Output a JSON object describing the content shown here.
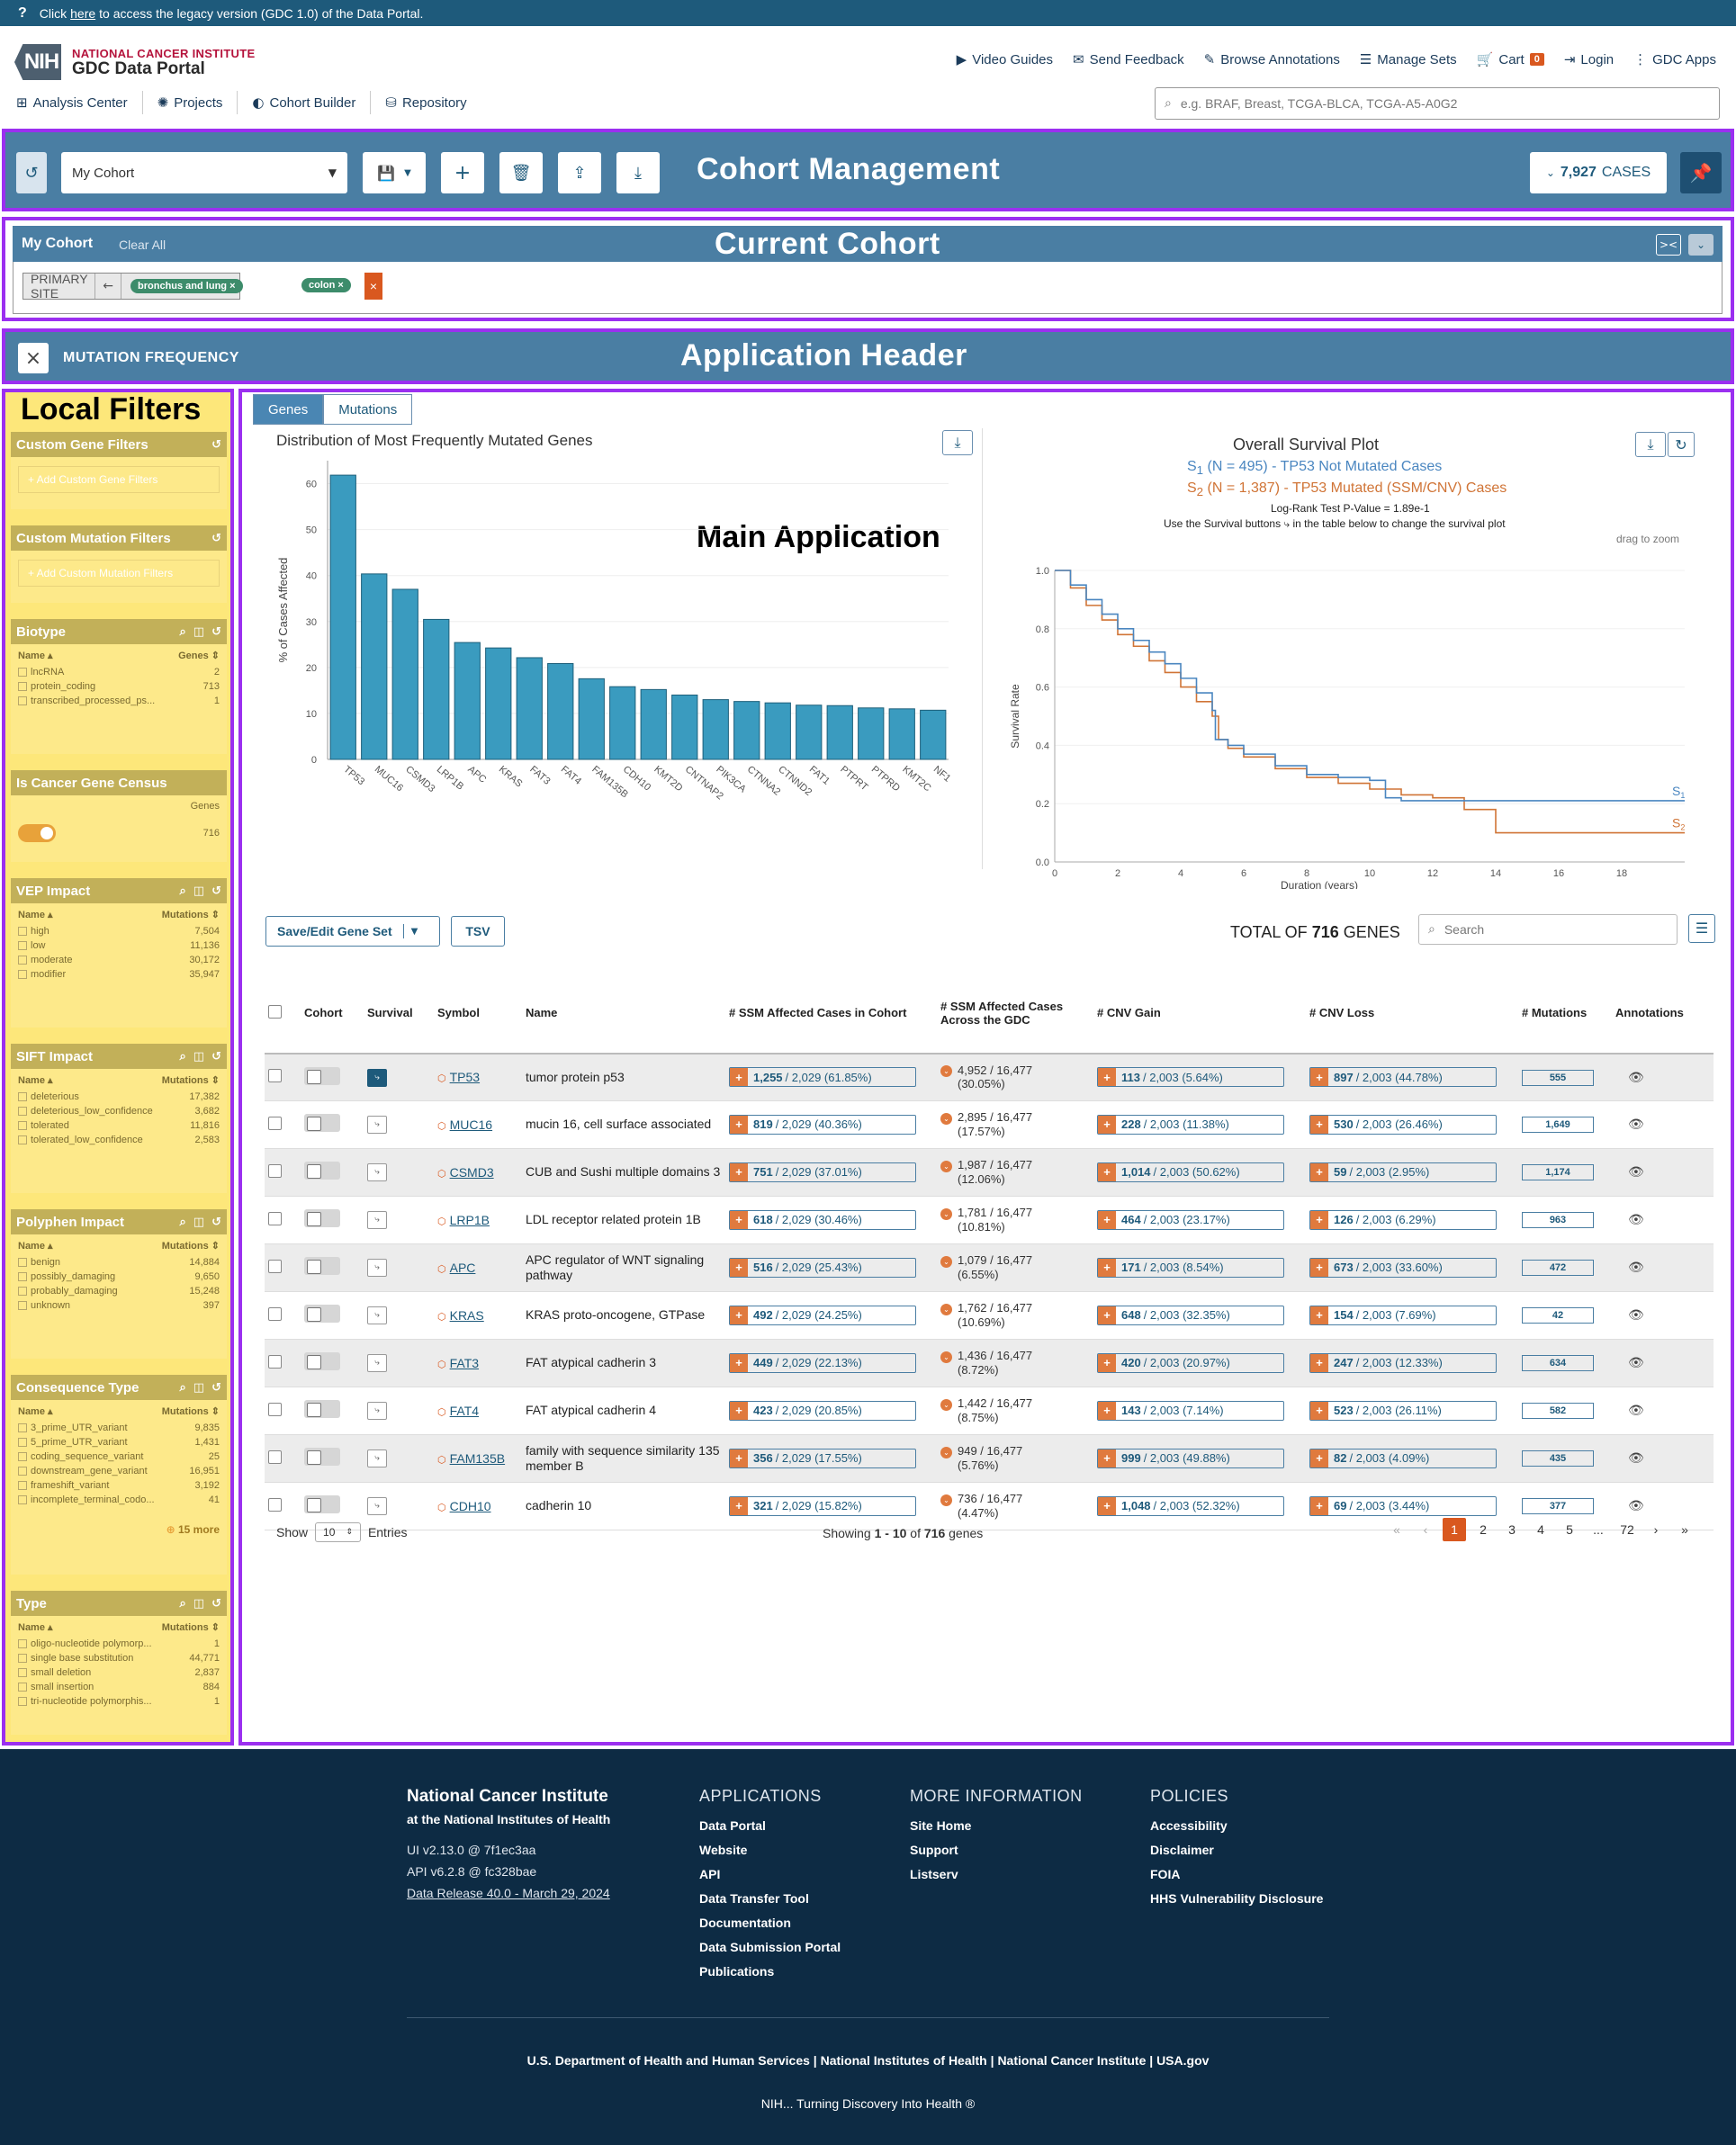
{
  "topbar": {
    "pre": "Click",
    "link": "here",
    "post": "to access the legacy version (GDC 1.0) of the Data Portal."
  },
  "logo": {
    "nih": "NIH",
    "line1": "NATIONAL CANCER INSTITUTE",
    "line2": "GDC Data Portal"
  },
  "topnav": [
    {
      "icon": "▶",
      "label": "Video Guides"
    },
    {
      "icon": "✉",
      "label": "Send Feedback"
    },
    {
      "icon": "✎",
      "label": "Browse Annotations"
    },
    {
      "icon": "☰",
      "label": "Manage Sets"
    },
    {
      "icon": "🛒",
      "label": "Cart",
      "badge": "0"
    },
    {
      "icon": "⇥",
      "label": "Login"
    },
    {
      "icon": "⋮",
      "label": "GDC Apps"
    }
  ],
  "secnav": [
    {
      "icon": "⊞",
      "label": "Analysis Center"
    },
    {
      "icon": "✺",
      "label": "Projects"
    },
    {
      "icon": "◐",
      "label": "Cohort Builder"
    },
    {
      "icon": "⛁",
      "label": "Repository"
    }
  ],
  "search": {
    "placeholder": "e.g. BRAF, Breast, TCGA-BLCA, TCGA-A5-A0G2"
  },
  "annotations": {
    "cohort_mgmt": "Cohort Management",
    "current_cohort": "Current Cohort",
    "app_header": "Application Header",
    "local_filters": "Local Filters",
    "main_app": "Main Application"
  },
  "cohort_mgmt": {
    "cohort_name": "My Cohort",
    "cases_count": "7,927",
    "cases_label": "CASES"
  },
  "current_cohort": {
    "title": "My Cohort",
    "clear": "Clear All",
    "filter_field": "PRIMARY SITE",
    "chip1": "bronchus and lung",
    "chip2": "colon"
  },
  "app_header": {
    "title": "MUTATION FREQUENCY"
  },
  "local_filters": {
    "custom_gene": {
      "title": "Custom Gene Filters",
      "btn": "+ Add Custom Gene Filters"
    },
    "custom_mut": {
      "title": "Custom Mutation Filters",
      "btn": "+ Add Custom Mutation Filters"
    },
    "biotype": {
      "title": "Biotype",
      "col1": "Name",
      "col2": "Genes",
      "rows": [
        [
          "lncRNA",
          "2"
        ],
        [
          "protein_coding",
          "713"
        ],
        [
          "transcribed_processed_ps...",
          "1"
        ]
      ]
    },
    "cgc": {
      "title": "Is Cancer Gene Census",
      "col2": "Genes",
      "value": "716"
    },
    "vep": {
      "title": "VEP Impact",
      "col1": "Name",
      "col2": "Mutations",
      "rows": [
        [
          "high",
          "7,504"
        ],
        [
          "low",
          "11,136"
        ],
        [
          "moderate",
          "30,172"
        ],
        [
          "modifier",
          "35,947"
        ]
      ]
    },
    "sift": {
      "title": "SIFT Impact",
      "col1": "Name",
      "col2": "Mutations",
      "rows": [
        [
          "deleterious",
          "17,382"
        ],
        [
          "deleterious_low_confidence",
          "3,682"
        ],
        [
          "tolerated",
          "11,816"
        ],
        [
          "tolerated_low_confidence",
          "2,583"
        ]
      ]
    },
    "polyphen": {
      "title": "Polyphen Impact",
      "col1": "Name",
      "col2": "Mutations",
      "rows": [
        [
          "benign",
          "14,884"
        ],
        [
          "possibly_damaging",
          "9,650"
        ],
        [
          "probably_damaging",
          "15,248"
        ],
        [
          "unknown",
          "397"
        ]
      ]
    },
    "consequence": {
      "title": "Consequence Type",
      "col1": "Name",
      "col2": "Mutations",
      "rows": [
        [
          "3_prime_UTR_variant",
          "9,835"
        ],
        [
          "5_prime_UTR_variant",
          "1,431"
        ],
        [
          "coding_sequence_variant",
          "25"
        ],
        [
          "downstream_gene_variant",
          "16,951"
        ],
        [
          "frameshift_variant",
          "3,192"
        ],
        [
          "incomplete_terminal_codo...",
          "41"
        ]
      ],
      "more": "15 more"
    },
    "type": {
      "title": "Type",
      "col1": "Name",
      "col2": "Mutations",
      "rows": [
        [
          "oligo-nucleotide polymorp...",
          "1"
        ],
        [
          "single base substitution",
          "44,771"
        ],
        [
          "small deletion",
          "2,837"
        ],
        [
          "small insertion",
          "884"
        ],
        [
          "tri-nucleotide polymorphis...",
          "1"
        ]
      ]
    }
  },
  "main": {
    "tabs": [
      "Genes",
      "Mutations"
    ],
    "save_btn": "Save/Edit Gene Set",
    "tsv_btn": "TSV",
    "total_pre": "TOTAL OF",
    "total_num": "716",
    "total_post": "GENES",
    "search_placeholder": "Search",
    "show": "Show",
    "entries": "Entries",
    "page_size": "10",
    "showing_pre": "Showing",
    "showing_range": "1 - 10",
    "showing_of": "of",
    "showing_total": "716",
    "showing_post": "genes",
    "pages": [
      "1",
      "2",
      "3",
      "4",
      "5",
      "...",
      "72"
    ]
  },
  "bar_chart": {
    "title": "Distribution of Most Frequently Mutated Genes",
    "ylabel": "% of Cases Affected",
    "ylim": [
      0,
      65
    ],
    "yticks": [
      0,
      10,
      20,
      30,
      40,
      50,
      60
    ],
    "categories": [
      "TP53",
      "MUC16",
      "CSMD3",
      "LRP1B",
      "APC",
      "KRAS",
      "FAT3",
      "FAT4",
      "FAM135B",
      "CDH10",
      "KMT2D",
      "CNTNAP2",
      "PIK3CA",
      "CTNNA2",
      "CTNND2",
      "FAT1",
      "PTPRT",
      "PTPRD",
      "KMT2C",
      "NF1"
    ],
    "values": [
      61.85,
      40.36,
      37.01,
      30.46,
      25.43,
      24.25,
      22.13,
      20.85,
      17.55,
      15.82,
      15.2,
      14.0,
      13.0,
      12.6,
      12.3,
      11.8,
      11.7,
      11.2,
      11.0,
      10.7
    ],
    "color": "#3a9bbf"
  },
  "survival": {
    "title": "Overall Survival Plot",
    "s1_label_pre": "S",
    "s1_sub": "1",
    "s1_label": "(N = 495) - TP53 Not Mutated Cases",
    "s2_label_pre": "S",
    "s2_sub": "2",
    "s2_label": "(N = 1,387) - TP53 Mutated (SSM/CNV) Cases",
    "logrank": "Log-Rank Test P-Value = 1.89e-1",
    "hint": "Use the Survival buttons ⤷ in the table below to change the survival plot",
    "drag": "drag to zoom",
    "xlabel": "Duration (years)",
    "ylabel": "Survival Rate",
    "xticks": [
      0,
      2,
      4,
      6,
      8,
      10,
      12,
      14,
      16,
      18
    ],
    "yticks": [
      0.0,
      0.2,
      0.4,
      0.6,
      0.8,
      1.0
    ],
    "s1_color": "#4a86c0",
    "s2_color": "#d07436",
    "s1": [
      [
        0,
        1.0
      ],
      [
        0.5,
        0.95
      ],
      [
        1,
        0.9
      ],
      [
        1.5,
        0.85
      ],
      [
        2,
        0.8
      ],
      [
        2.5,
        0.76
      ],
      [
        3,
        0.72
      ],
      [
        3.5,
        0.68
      ],
      [
        4,
        0.63
      ],
      [
        4.5,
        0.58
      ],
      [
        5,
        0.52
      ],
      [
        5.1,
        0.42
      ],
      [
        5.5,
        0.4
      ],
      [
        6,
        0.37
      ],
      [
        7,
        0.33
      ],
      [
        8,
        0.3
      ],
      [
        9,
        0.29
      ],
      [
        10,
        0.28
      ],
      [
        10.5,
        0.22
      ],
      [
        11,
        0.21
      ],
      [
        13,
        0.21
      ],
      [
        14,
        0.21
      ],
      [
        20,
        0.21
      ]
    ],
    "s2": [
      [
        0,
        1.0
      ],
      [
        0.5,
        0.94
      ],
      [
        1,
        0.88
      ],
      [
        1.5,
        0.83
      ],
      [
        2,
        0.78
      ],
      [
        2.5,
        0.74
      ],
      [
        3,
        0.69
      ],
      [
        3.5,
        0.65
      ],
      [
        4,
        0.6
      ],
      [
        4.5,
        0.55
      ],
      [
        5,
        0.5
      ],
      [
        5.2,
        0.42
      ],
      [
        5.5,
        0.39
      ],
      [
        6,
        0.36
      ],
      [
        7,
        0.32
      ],
      [
        8,
        0.29
      ],
      [
        9,
        0.27
      ],
      [
        10,
        0.25
      ],
      [
        11,
        0.23
      ],
      [
        12,
        0.22
      ],
      [
        13,
        0.18
      ],
      [
        14,
        0.1
      ],
      [
        20,
        0.1
      ]
    ],
    "end1": "1",
    "end2": "2"
  },
  "table": {
    "headers": {
      "cohort": "Cohort",
      "survival": "Survival",
      "symbol": "Symbol",
      "name": "Name",
      "ssm": "# SSM Affected Cases in Cohort",
      "ssm_across": "# SSM Affected Cases Across the GDC",
      "cnv_gain": "# CNV Gain",
      "cnv_loss": "# CNV Loss",
      "mutations": "# Mutations",
      "annotations": "Annotations"
    },
    "rows": [
      {
        "symbol": "TP53",
        "name": "tumor protein p53",
        "ssm_n": "1,255",
        "ssm_rest": "/ 2,029 (61.85%)",
        "across1": "4,952 / 16,477",
        "across2": "(30.05%)",
        "gain_n": "113",
        "gain_rest": "/ 2,003 (5.64%)",
        "loss_n": "897",
        "loss_rest": "/ 2,003 (44.78%)",
        "muts": "555",
        "surv_on": true
      },
      {
        "symbol": "MUC16",
        "name": "mucin 16, cell surface associated",
        "ssm_n": "819",
        "ssm_rest": "/ 2,029 (40.36%)",
        "across1": "2,895 / 16,477",
        "across2": "(17.57%)",
        "gain_n": "228",
        "gain_rest": "/ 2,003 (11.38%)",
        "loss_n": "530",
        "loss_rest": "/ 2,003 (26.46%)",
        "muts": "1,649"
      },
      {
        "symbol": "CSMD3",
        "name": "CUB and Sushi multiple domains 3",
        "ssm_n": "751",
        "ssm_rest": "/ 2,029 (37.01%)",
        "across1": "1,987 / 16,477",
        "across2": "(12.06%)",
        "gain_n": "1,014",
        "gain_rest": "/ 2,003 (50.62%)",
        "loss_n": "59",
        "loss_rest": "/ 2,003 (2.95%)",
        "muts": "1,174"
      },
      {
        "symbol": "LRP1B",
        "name": "LDL receptor related protein 1B",
        "ssm_n": "618",
        "ssm_rest": "/ 2,029 (30.46%)",
        "across1": "1,781 / 16,477",
        "across2": "(10.81%)",
        "gain_n": "464",
        "gain_rest": "/ 2,003 (23.17%)",
        "loss_n": "126",
        "loss_rest": "/ 2,003 (6.29%)",
        "muts": "963"
      },
      {
        "symbol": "APC",
        "name": "APC regulator of WNT signaling pathway",
        "ssm_n": "516",
        "ssm_rest": "/ 2,029 (25.43%)",
        "across1": "1,079 / 16,477",
        "across2": "(6.55%)",
        "gain_n": "171",
        "gain_rest": "/ 2,003 (8.54%)",
        "loss_n": "673",
        "loss_rest": "/ 2,003 (33.60%)",
        "muts": "472"
      },
      {
        "symbol": "KRAS",
        "name": "KRAS proto-oncogene, GTPase",
        "ssm_n": "492",
        "ssm_rest": "/ 2,029 (24.25%)",
        "across1": "1,762 / 16,477",
        "across2": "(10.69%)",
        "gain_n": "648",
        "gain_rest": "/ 2,003 (32.35%)",
        "loss_n": "154",
        "loss_rest": "/ 2,003 (7.69%)",
        "muts": "42"
      },
      {
        "symbol": "FAT3",
        "name": "FAT atypical cadherin 3",
        "ssm_n": "449",
        "ssm_rest": "/ 2,029 (22.13%)",
        "across1": "1,436 / 16,477",
        "across2": "(8.72%)",
        "gain_n": "420",
        "gain_rest": "/ 2,003 (20.97%)",
        "loss_n": "247",
        "loss_rest": "/ 2,003 (12.33%)",
        "muts": "634"
      },
      {
        "symbol": "FAT4",
        "name": "FAT atypical cadherin 4",
        "ssm_n": "423",
        "ssm_rest": "/ 2,029 (20.85%)",
        "across1": "1,442 / 16,477",
        "across2": "(8.75%)",
        "gain_n": "143",
        "gain_rest": "/ 2,003 (7.14%)",
        "loss_n": "523",
        "loss_rest": "/ 2,003 (26.11%)",
        "muts": "582"
      },
      {
        "symbol": "FAM135B",
        "name": "family with sequence similarity 135 member B",
        "ssm_n": "356",
        "ssm_rest": "/ 2,029 (17.55%)",
        "across1": "949 / 16,477",
        "across2": "(5.76%)",
        "gain_n": "999",
        "gain_rest": "/ 2,003 (49.88%)",
        "loss_n": "82",
        "loss_rest": "/ 2,003 (4.09%)",
        "muts": "435"
      },
      {
        "symbol": "CDH10",
        "name": "cadherin 10",
        "ssm_n": "321",
        "ssm_rest": "/ 2,029 (15.82%)",
        "across1": "736 / 16,477",
        "across2": "(4.47%)",
        "gain_n": "1,048",
        "gain_rest": "/ 2,003 (52.32%)",
        "loss_n": "69",
        "loss_rest": "/ 2,003 (3.44%)",
        "muts": "377"
      }
    ]
  },
  "footer": {
    "org1": "National Cancer Institute",
    "org2": "at the National Institutes of Health",
    "ui": "UI v2.13.0 @ 7f1ec3aa",
    "api": "API v6.2.8 @ fc328bae",
    "release": "Data Release 40.0 - March 29, 2024",
    "apps_title": "APPLICATIONS",
    "apps": [
      "Data Portal",
      "Website",
      "API",
      "Data Transfer Tool",
      "Documentation",
      "Data Submission Portal",
      "Publications"
    ],
    "info_title": "MORE INFORMATION",
    "info": [
      "Site Home",
      "Support",
      "Listserv"
    ],
    "pol_title": "POLICIES",
    "pol": [
      "Accessibility",
      "Disclaimer",
      "FOIA",
      "HHS Vulnerability Disclosure"
    ],
    "gov": [
      "U.S. Department of Health and Human Services",
      "National Institutes of Health",
      "National Cancer Institute",
      "USA.gov"
    ],
    "tagline": "NIH... Turning Discovery Into Health ®"
  }
}
